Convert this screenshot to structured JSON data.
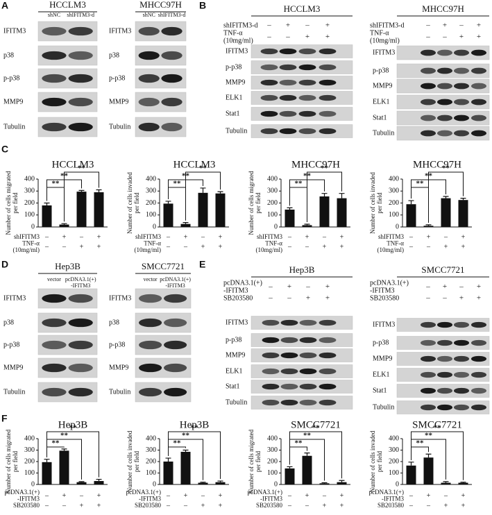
{
  "panel_A": {
    "label": "A",
    "blots": [
      {
        "title": "HCCLM3",
        "lanes": [
          [
            "shNC"
          ],
          [
            "shIFITM3-d"
          ]
        ],
        "proteins": [
          "IFITM3",
          "p38",
          "p-p38",
          "MMP9",
          "Tubulin"
        ]
      },
      {
        "title": "MHCC97H",
        "lanes": [
          [
            "shNC"
          ],
          [
            "shIFITM3-d"
          ]
        ],
        "proteins": [
          "IFITM3",
          "p38",
          "p-p38",
          "MMP9",
          "Tubulin"
        ]
      }
    ]
  },
  "panel_B": {
    "label": "B",
    "blots": [
      {
        "title": "HCCLM3",
        "treatments": [
          {
            "label": [
              "shIFITM3-d"
            ],
            "signs": [
              "–",
              "+",
              "–",
              "+"
            ]
          },
          {
            "label": [
              "TNF-α",
              "(10mg/ml)"
            ],
            "signs": [
              "–",
              "–",
              "+",
              "+"
            ]
          }
        ],
        "proteins": [
          "IFITM3",
          "p-p38",
          "MMP9",
          "ELK1",
          "Stat1",
          "Tubulin"
        ]
      },
      {
        "title": "MHCC97H",
        "treatments": [
          {
            "label": [
              "shIFITM3-d"
            ],
            "signs": [
              "–",
              "+",
              "–",
              "+"
            ]
          },
          {
            "label": [
              "TNF-α",
              "(10mg/ml)"
            ],
            "signs": [
              "–",
              "–",
              "+",
              "+"
            ]
          }
        ],
        "proteins": [
          "IFITM3",
          "p-p38",
          "MMP9",
          "ELK1",
          "Stat1",
          "Tubulin"
        ]
      }
    ]
  },
  "panel_C": {
    "label": "C"
  },
  "panel_D": {
    "label": "D",
    "blots": [
      {
        "title": "Hep3B",
        "lanes": [
          [
            "vector"
          ],
          [
            "pcDNA3.1(+)",
            "-IFITM3"
          ]
        ],
        "proteins": [
          "IFITM3",
          "p38",
          "p-p38",
          "MMP9",
          "Tubulin"
        ]
      },
      {
        "title": "SMCC7721",
        "lanes": [
          [
            "vector"
          ],
          [
            "pcDNA3.1(+)",
            "-IFITM3"
          ]
        ],
        "proteins": [
          "IFITM3",
          "p38",
          "p-p38",
          "MMP9",
          "Tubulin"
        ]
      }
    ]
  },
  "panel_E": {
    "label": "E",
    "blots": [
      {
        "title": "Hep3B",
        "treatments": [
          {
            "label": [
              "pcDNA3.1(+)",
              "-IFITM3"
            ],
            "signs": [
              "–",
              "+",
              "–",
              "+"
            ]
          },
          {
            "label": [
              "SB203580"
            ],
            "signs": [
              "–",
              "–",
              "+",
              "+"
            ]
          }
        ],
        "proteins": [
          "IFITM3",
          "p-p38",
          "MMP9",
          "ELK1",
          "Stat1",
          "Tubulin"
        ]
      },
      {
        "title": "SMCC7721",
        "treatments": [
          {
            "label": [
              "pcDNA3.1(+)",
              "-IFITM3"
            ],
            "signs": [
              "–",
              "+",
              "–",
              "+"
            ]
          },
          {
            "label": [
              "SB203580"
            ],
            "signs": [
              "–",
              "–",
              "+",
              "+"
            ]
          }
        ],
        "proteins": [
          "IFITM3",
          "p-p38",
          "MMP9",
          "ELK1",
          "Stat1",
          "Tubulin"
        ]
      }
    ]
  },
  "panel_F": {
    "label": "F"
  },
  "chart_data": [
    {
      "type": "bar",
      "title": "HCCLM3",
      "ylabel": [
        "Number of cells migrated",
        "per field"
      ],
      "values": [
        180,
        20,
        295,
        290
      ],
      "errors": [
        20,
        8,
        10,
        20
      ],
      "color": "#111111",
      "ylim": [
        0,
        400
      ],
      "yticks": [
        0,
        100,
        200,
        300,
        400
      ],
      "annotations": [
        "**",
        "**",
        "**"
      ],
      "treatments": [
        {
          "label": [
            "shIFITM3"
          ],
          "signs": [
            "–",
            "+",
            "–",
            "+"
          ]
        },
        {
          "label": [
            "TNF-α",
            "(10mg/ml)"
          ],
          "signs": [
            "–",
            "–",
            "+",
            "+"
          ]
        }
      ]
    },
    {
      "type": "bar",
      "title": "HCCLM3",
      "ylabel": [
        "Number of cells invaded",
        "per field"
      ],
      "values": [
        195,
        25,
        285,
        280
      ],
      "errors": [
        20,
        12,
        40,
        15
      ],
      "color": "#111111",
      "ylim": [
        0,
        400
      ],
      "yticks": [
        0,
        100,
        200,
        300,
        400
      ],
      "annotations": [
        "**",
        "**",
        "**"
      ],
      "treatments": [
        {
          "label": [
            "shIFITM3"
          ],
          "signs": [
            "–",
            "+",
            "–",
            "+"
          ]
        },
        {
          "label": [
            "TNF-α",
            "(10mg/ml)"
          ],
          "signs": [
            "–",
            "–",
            "+",
            "+"
          ]
        }
      ]
    },
    {
      "type": "bar",
      "title": "MHCC97H",
      "ylabel": [
        "Number of cells migrated",
        "per field"
      ],
      "values": [
        145,
        15,
        255,
        240
      ],
      "errors": [
        15,
        8,
        25,
        40
      ],
      "color": "#111111",
      "ylim": [
        0,
        400
      ],
      "yticks": [
        0,
        100,
        200,
        300,
        400
      ],
      "annotations": [
        "**",
        "**",
        "**"
      ],
      "treatments": [
        {
          "label": [
            "shIFITM3"
          ],
          "signs": [
            "–",
            "+",
            "–",
            "+"
          ]
        },
        {
          "label": [
            "TNF-α",
            "(10mg/ml)"
          ],
          "signs": [
            "–",
            "–",
            "+",
            "+"
          ]
        }
      ]
    },
    {
      "type": "bar",
      "title": "MHCC97H",
      "ylabel": [
        "Number of cells invaded",
        "per field"
      ],
      "values": [
        190,
        10,
        240,
        225
      ],
      "errors": [
        30,
        8,
        15,
        15
      ],
      "color": "#111111",
      "ylim": [
        0,
        400
      ],
      "yticks": [
        0,
        100,
        200,
        300,
        400
      ],
      "annotations": [
        "**",
        "**",
        "**"
      ],
      "treatments": [
        {
          "label": [
            "shIFITM3"
          ],
          "signs": [
            "–",
            "+",
            "–",
            "+"
          ]
        },
        {
          "label": [
            "TNF-α",
            "(10mg/ml)"
          ],
          "signs": [
            "–",
            "–",
            "+",
            "+"
          ]
        }
      ]
    },
    {
      "type": "bar",
      "title": "Hep3B",
      "ylabel": [
        "Number of cells migrated",
        "per field"
      ],
      "values": [
        195,
        295,
        20,
        30
      ],
      "errors": [
        25,
        15,
        5,
        15
      ],
      "color": "#111111",
      "ylim": [
        0,
        400
      ],
      "yticks": [
        0,
        100,
        200,
        300,
        400
      ],
      "annotations": [
        "**",
        "**",
        "**"
      ],
      "treatments": [
        {
          "label": [
            "pcDNA3.1(+)",
            "-IFITM3"
          ],
          "signs": [
            "–",
            "+",
            "–",
            "+"
          ]
        },
        {
          "label": [
            "SB203580"
          ],
          "signs": [
            "–",
            "–",
            "+",
            "+"
          ]
        }
      ]
    },
    {
      "type": "bar",
      "title": "Hep3B",
      "ylabel": [
        "Number of cells invaded",
        "per field"
      ],
      "values": [
        200,
        285,
        15,
        20
      ],
      "errors": [
        30,
        15,
        5,
        10
      ],
      "color": "#111111",
      "ylim": [
        0,
        400
      ],
      "yticks": [
        0,
        100,
        200,
        300,
        400
      ],
      "annotations": [
        "**",
        "**",
        "**"
      ],
      "treatments": [
        {
          "label": [
            "pcDNA3.1(+)",
            "-IFITM3"
          ],
          "signs": [
            "–",
            "+",
            "–",
            "+"
          ]
        },
        {
          "label": [
            "SB203580"
          ],
          "signs": [
            "–",
            "–",
            "+",
            "+"
          ]
        }
      ]
    },
    {
      "type": "bar",
      "title": "SMCC7721",
      "ylabel": [
        "Number of cells migrated",
        "per field"
      ],
      "values": [
        140,
        250,
        10,
        20
      ],
      "errors": [
        15,
        25,
        5,
        15
      ],
      "color": "#111111",
      "ylim": [
        0,
        400
      ],
      "yticks": [
        0,
        100,
        200,
        300,
        400
      ],
      "annotations": [
        "**",
        "**",
        "**"
      ],
      "treatments": [
        {
          "label": [
            "pcDNA3.1(+)",
            "-IFITM3"
          ],
          "signs": [
            "–",
            "+",
            "–",
            "+"
          ]
        },
        {
          "label": [
            "SB203580"
          ],
          "signs": [
            "–",
            "–",
            "+",
            "+"
          ]
        }
      ]
    },
    {
      "type": "bar",
      "title": "SMCC7721",
      "ylabel": [
        "Number of cells invaded",
        "per field"
      ],
      "values": [
        165,
        235,
        15,
        15
      ],
      "errors": [
        30,
        30,
        10,
        5
      ],
      "color": "#111111",
      "ylim": [
        0,
        400
      ],
      "yticks": [
        0,
        100,
        200,
        300,
        400
      ],
      "annotations": [
        "**",
        "**",
        "**"
      ],
      "treatments": [
        {
          "label": [
            "pcDNA3.1(+)",
            "-IFITM3"
          ],
          "signs": [
            "–",
            "+",
            "–",
            "+"
          ]
        },
        {
          "label": [
            "SB203580"
          ],
          "signs": [
            "–",
            "–",
            "+",
            "+"
          ]
        }
      ]
    }
  ]
}
